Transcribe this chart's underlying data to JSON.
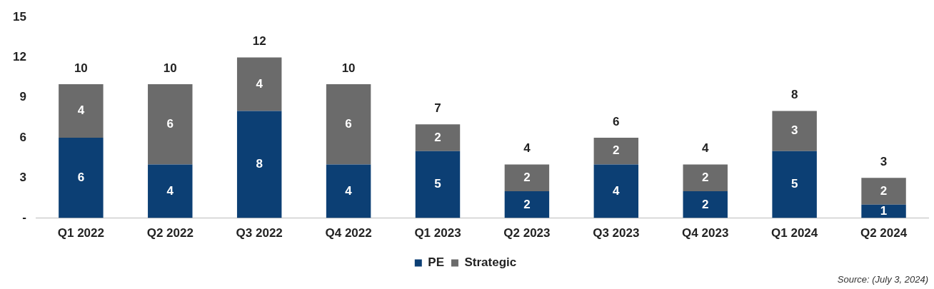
{
  "chart_data": {
    "type": "bar",
    "stacked": true,
    "categories": [
      "Q1 2022",
      "Q2 2022",
      "Q3 2022",
      "Q4 2022",
      "Q1 2023",
      "Q2 2023",
      "Q3 2023",
      "Q4 2023",
      "Q1 2024",
      "Q2 2024"
    ],
    "series": [
      {
        "name": "PE",
        "color": "#0c3f74",
        "values": [
          6,
          4,
          8,
          4,
          5,
          2,
          4,
          2,
          5,
          1
        ]
      },
      {
        "name": "Strategic",
        "color": "#6b6b6b",
        "values": [
          4,
          6,
          4,
          6,
          2,
          2,
          2,
          2,
          3,
          2
        ]
      }
    ],
    "ylim": [
      0,
      15
    ],
    "yticks": [
      {
        "value": 0,
        "label": "-"
      },
      3,
      6,
      9,
      12,
      15
    ],
    "data_labels": true,
    "totals": [
      "10",
      "10",
      "12",
      "10",
      "7",
      "4",
      "6",
      "4",
      "8",
      "3"
    ],
    "legend": "bottom",
    "grid": false,
    "annotations": [
      "Source: (July 3, 2024)"
    ]
  }
}
